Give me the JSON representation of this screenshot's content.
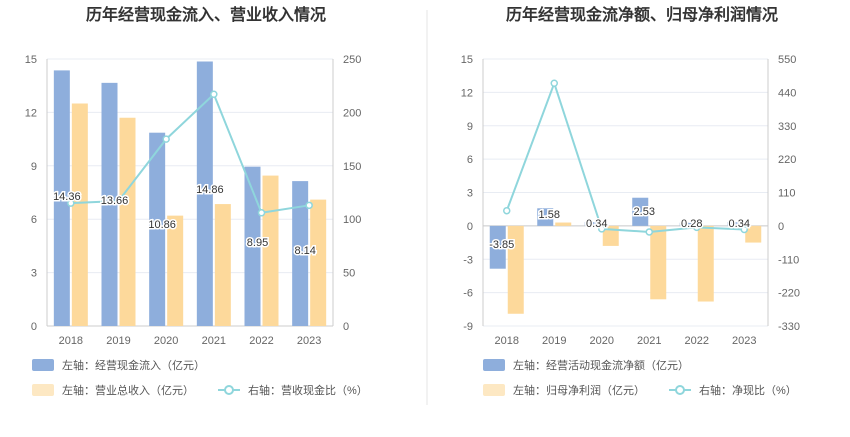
{
  "colors": {
    "blue_bar": "#8eaedc",
    "orange_bar": "#fdd99b",
    "line": "#8fd6dc",
    "grid": "#e8ecf3",
    "divider": "#e6e6e6"
  },
  "chart_data": [
    {
      "type": "bar",
      "title": "历年经营现金流入、营业收入情况",
      "categories": [
        "2018",
        "2019",
        "2020",
        "2021",
        "2022",
        "2023"
      ],
      "left_axis": {
        "ticks": [
          "0",
          "3",
          "6",
          "9",
          "12",
          "15"
        ],
        "ylim": [
          0,
          15
        ]
      },
      "right_axis": {
        "ticks": [
          "0",
          "50",
          "100",
          "150",
          "200",
          "250"
        ],
        "ylim": [
          0,
          250
        ]
      },
      "series": [
        {
          "name": "左轴：经营现金流入（亿元）",
          "axis": "left",
          "type": "bar",
          "values": [
            14.36,
            13.66,
            10.86,
            14.86,
            8.95,
            8.14
          ],
          "labels": [
            "14.36",
            "13.66",
            "10.86",
            "14.86",
            "8.95",
            "8.14"
          ]
        },
        {
          "name": "左轴：营业总收入（亿元）",
          "axis": "left",
          "type": "bar",
          "values": [
            12.5,
            11.7,
            6.2,
            6.85,
            8.45,
            7.1
          ]
        },
        {
          "name": "右轴：营收现金比（%）",
          "axis": "right",
          "type": "line",
          "values": [
            115,
            117,
            175,
            217,
            106,
            113
          ]
        }
      ],
      "grid": true,
      "legend": "bottom"
    },
    {
      "type": "bar",
      "title": "历年经营现金流净额、归母净利润情况",
      "categories": [
        "2018",
        "2019",
        "2020",
        "2021",
        "2022",
        "2023"
      ],
      "left_axis": {
        "ticks": [
          "-9",
          "-6",
          "-3",
          "0",
          "3",
          "6",
          "9",
          "12",
          "15"
        ],
        "ylim": [
          -9,
          15
        ]
      },
      "right_axis": {
        "ticks": [
          "-330",
          "-220",
          "-110",
          "0",
          "110",
          "220",
          "330",
          "440",
          "550"
        ],
        "ylim": [
          -330,
          550
        ]
      },
      "series": [
        {
          "name": "左轴：经营活动现金流净额（亿元）",
          "axis": "left",
          "type": "bar",
          "values": [
            -3.85,
            1.58,
            0.34,
            2.53,
            0.28,
            0.34
          ],
          "labels": [
            "-3.85",
            "1.58",
            "0.34",
            "2.53",
            "0.28",
            "0.34"
          ]
        },
        {
          "name": "左轴：归母净利润（亿元）",
          "axis": "left",
          "type": "bar",
          "values": [
            -7.9,
            0.3,
            -1.8,
            -6.6,
            -6.8,
            -1.5
          ]
        },
        {
          "name": "右轴：净现比（%）",
          "axis": "right",
          "type": "line",
          "values": [
            50,
            470,
            -10,
            -20,
            -5,
            -12
          ]
        }
      ],
      "grid": true,
      "legend": "bottom"
    }
  ]
}
